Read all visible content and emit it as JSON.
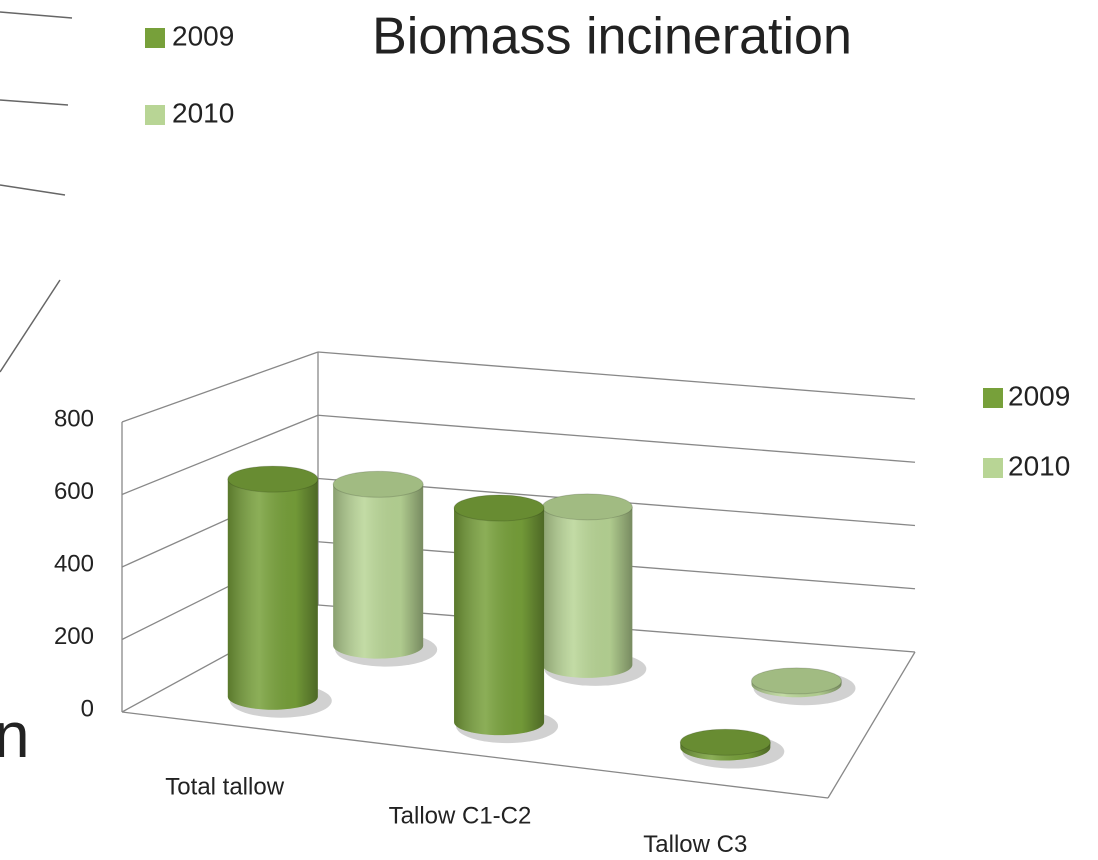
{
  "chart_data": {
    "type": "bar3d",
    "title": "Biomass incineration",
    "categories": [
      "Total tallow",
      "Tallow C1-C2",
      "Tallow C3"
    ],
    "series": [
      {
        "name": "2009",
        "color": "#77a03a",
        "values": [
          620,
          610,
          15
        ]
      },
      {
        "name": "2010",
        "color": "#b8d595",
        "values": [
          490,
          480,
          10
        ]
      }
    ],
    "ylim": [
      0,
      800
    ],
    "yticks": [
      0,
      200,
      400,
      600,
      800
    ],
    "grid": true
  },
  "background_text": "n"
}
